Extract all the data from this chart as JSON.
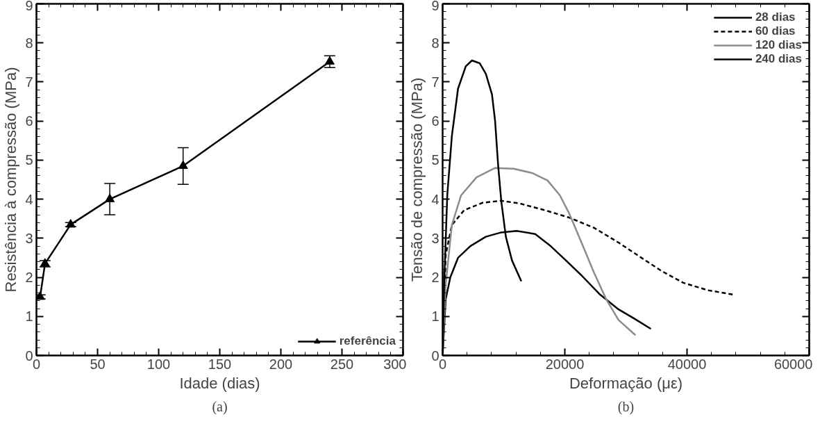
{
  "chart_data": [
    {
      "type": "line",
      "xlabel": "Idade (dias)",
      "ylabel": "Resistência à compressão (MPa)",
      "x": [
        3,
        7,
        28,
        60,
        120,
        240
      ],
      "xlim": [
        0,
        300
      ],
      "xticks": [
        0,
        50,
        100,
        150,
        200,
        250,
        300
      ],
      "ylim": [
        0,
        9
      ],
      "yticks": [
        0,
        1,
        2,
        3,
        4,
        5,
        6,
        7,
        8,
        9
      ],
      "grid": false,
      "legend": "bottom right",
      "marker": "triangle",
      "line_style": "solid",
      "series": [
        {
          "name": "referência",
          "color": "#000000",
          "values": [
            1.5,
            2.35,
            3.35,
            4.0,
            4.85,
            7.52
          ],
          "errors": [
            0.05,
            0.08,
            0.05,
            0.4,
            0.47,
            0.15
          ]
        }
      ],
      "annotations": [
        "(a)"
      ]
    },
    {
      "type": "line",
      "xlabel": "Deformação (με)",
      "ylabel": "Tensão de compressão (MPa)",
      "xlim": [
        0,
        60000
      ],
      "xticks": [
        0,
        20000,
        40000,
        60000
      ],
      "ylim": [
        0,
        9
      ],
      "yticks": [
        0,
        1,
        2,
        3,
        4,
        5,
        6,
        7,
        8,
        9
      ],
      "grid": false,
      "legend": "top right",
      "marker": "none",
      "series": [
        {
          "name": "28 dias",
          "color": "#000000",
          "line_style": "solid",
          "x": [
            0,
            505,
            1260,
            2525,
            4545,
            7070,
            9600,
            12120,
            15150,
            17680,
            20200,
            22730,
            25760,
            28790,
            31310,
            34090
          ],
          "values": [
            0,
            1.44,
            2.0,
            2.5,
            2.8,
            3.04,
            3.15,
            3.19,
            3.11,
            2.8,
            2.43,
            2.05,
            1.56,
            1.18,
            0.95,
            0.68
          ]
        },
        {
          "name": "60 dias",
          "color": "#000000",
          "line_style": "dashed",
          "x": [
            0,
            505,
            1515,
            3535,
            6565,
            9600,
            12630,
            16670,
            20700,
            24750,
            28790,
            32830,
            35860,
            39390,
            43430,
            47470
          ],
          "values": [
            0,
            2.58,
            3.34,
            3.72,
            3.91,
            3.96,
            3.89,
            3.72,
            3.53,
            3.27,
            2.89,
            2.47,
            2.16,
            1.86,
            1.67,
            1.56
          ]
        },
        {
          "name": "120 dias",
          "color": "#8c8c8c",
          "line_style": "solid",
          "x": [
            0,
            505,
            1515,
            3030,
            5555,
            8590,
            11620,
            14650,
            17170,
            19190,
            20700,
            22730,
            24750,
            26770,
            28790,
            31560
          ],
          "values": [
            0,
            1.82,
            3.34,
            4.1,
            4.56,
            4.8,
            4.78,
            4.67,
            4.48,
            4.1,
            3.64,
            2.89,
            2.13,
            1.44,
            0.91,
            0.52
          ]
        },
        {
          "name": "240 dias",
          "color": "#000000",
          "line_style": "solid",
          "x": [
            0,
            250,
            760,
            1515,
            2525,
            3790,
            4800,
            6060,
            7070,
            8080,
            8590,
            9090,
            9600,
            10350,
            11360,
            12880
          ],
          "values": [
            0,
            1.82,
            4.1,
            5.62,
            6.83,
            7.4,
            7.55,
            7.48,
            7.21,
            6.68,
            6.0,
            4.86,
            3.95,
            3.04,
            2.43,
            1.9
          ]
        }
      ],
      "annotations": [
        "(b)"
      ]
    }
  ]
}
